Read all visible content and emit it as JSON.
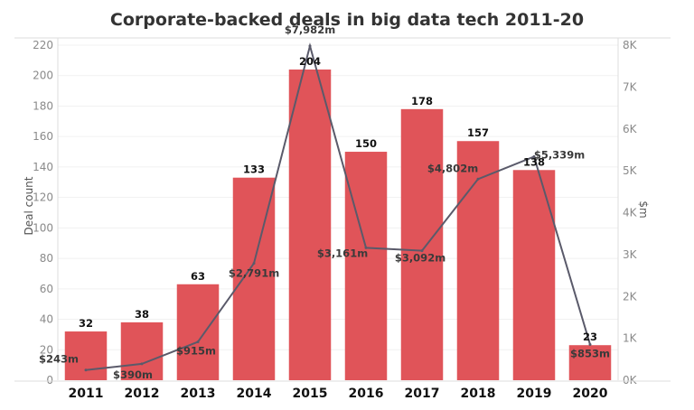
{
  "chart_data": {
    "type": "bar",
    "title": "Corporate-backed deals in big data tech 2011-20",
    "xlabel": "",
    "ylabel": "Deal count",
    "y2label": "$m",
    "categories": [
      "2011",
      "2012",
      "2013",
      "2014",
      "2015",
      "2016",
      "2017",
      "2018",
      "2019",
      "2020"
    ],
    "series": [
      {
        "name": "Deal count",
        "type": "bar",
        "axis": "left",
        "color": "#e05459",
        "values": [
          32,
          38,
          63,
          133,
          204,
          150,
          178,
          157,
          138,
          23
        ],
        "labels": [
          "32",
          "38",
          "63",
          "133",
          "204",
          "150",
          "178",
          "157",
          "138",
          "23"
        ]
      },
      {
        "name": "$m",
        "type": "line",
        "axis": "right",
        "color": "#5a5a6a",
        "values": [
          243,
          390,
          915,
          2791,
          7982,
          3161,
          3092,
          4802,
          5339,
          853
        ],
        "labels": [
          "$243m",
          "$390m",
          "$915m",
          "$2,791m",
          "$7,982m",
          "$3,161m",
          "$3,092m",
          "$4,802m",
          "$5,339m",
          "$853m"
        ]
      }
    ],
    "ylim": [
      0,
      220
    ],
    "y2lim": [
      0,
      8000
    ],
    "yticks": [
      "0",
      "20",
      "40",
      "60",
      "80",
      "100",
      "120",
      "140",
      "160",
      "180",
      "200",
      "220"
    ],
    "y2ticks": [
      "0K",
      "1K",
      "2K",
      "3K",
      "4K",
      "5K",
      "6K",
      "7K",
      "8K"
    ],
    "grid": true,
    "legend": "none"
  }
}
